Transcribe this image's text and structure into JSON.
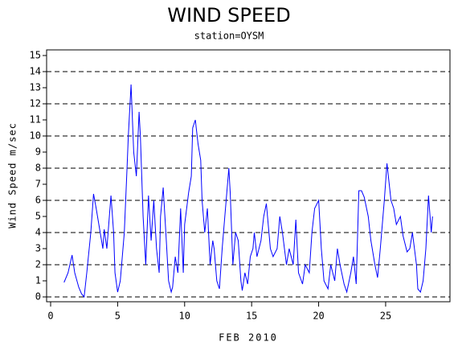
{
  "chart_data": {
    "type": "line",
    "title": "WIND SPEED",
    "subtitle": "station=OYSM",
    "xlabel": "FEB 2010",
    "ylabel": "Wind Speed m/sec",
    "xlim": [
      -0.3,
      29.8
    ],
    "ylim": [
      -0.3,
      15.35
    ],
    "xticks": [
      0,
      5,
      10,
      15,
      20,
      25
    ],
    "yticks": [
      0,
      1,
      2,
      3,
      4,
      5,
      6,
      7,
      8,
      9,
      10,
      11,
      12,
      13,
      14,
      15
    ],
    "ygrid": [
      0,
      2,
      4,
      6,
      8,
      10,
      12,
      14
    ],
    "series": [
      {
        "name": "Wind Speed",
        "color": "#0000ff",
        "x": [
          1.0,
          1.3,
          1.6,
          1.8,
          2.1,
          2.3,
          2.5,
          2.7,
          3.0,
          3.2,
          3.4,
          3.7,
          3.9,
          4.0,
          4.2,
          4.5,
          4.7,
          4.8,
          5.0,
          5.2,
          5.5,
          5.7,
          5.8,
          6.0,
          6.2,
          6.4,
          6.6,
          6.7,
          6.9,
          7.1,
          7.3,
          7.5,
          7.7,
          7.9,
          8.1,
          8.2,
          8.4,
          8.6,
          8.8,
          9.0,
          9.1,
          9.3,
          9.5,
          9.7,
          9.9,
          10.0,
          10.3,
          10.5,
          10.6,
          10.8,
          11.0,
          11.2,
          11.3,
          11.5,
          11.7,
          11.9,
          12.1,
          12.2,
          12.4,
          12.6,
          12.8,
          13.0,
          13.3,
          13.4,
          13.6,
          13.8,
          14.0,
          14.2,
          14.3,
          14.5,
          14.7,
          14.9,
          15.1,
          15.2,
          15.4,
          15.7,
          15.9,
          16.1,
          16.4,
          16.6,
          16.9,
          17.1,
          17.3,
          17.6,
          17.8,
          18.1,
          18.3,
          18.5,
          18.8,
          19.0,
          19.3,
          19.5,
          19.7,
          20.0,
          20.2,
          20.4,
          20.7,
          20.9,
          21.2,
          21.4,
          21.6,
          21.9,
          22.1,
          22.4,
          22.6,
          22.8,
          23.0,
          23.2,
          23.4,
          23.7,
          23.9,
          24.2,
          24.4,
          24.6,
          24.9,
          25.1,
          25.4,
          25.6,
          25.8,
          26.1,
          26.3,
          26.6,
          26.8,
          27.0,
          27.3,
          27.4,
          27.6,
          27.8,
          28.0,
          28.2,
          28.4,
          28.5
        ],
        "values": [
          0.9,
          1.5,
          2.6,
          1.5,
          0.6,
          0.2,
          0.0,
          1.5,
          4.0,
          6.4,
          5.5,
          4.0,
          3.0,
          4.2,
          3.0,
          6.3,
          4.0,
          1.5,
          0.3,
          1.0,
          4.0,
          8.0,
          10.0,
          13.2,
          9.0,
          7.5,
          11.5,
          10.0,
          5.0,
          2.0,
          6.3,
          3.5,
          6.0,
          3.0,
          1.5,
          5.0,
          6.8,
          4.0,
          1.0,
          0.3,
          0.6,
          2.5,
          1.5,
          5.5,
          1.5,
          4.5,
          6.5,
          7.5,
          10.5,
          11.0,
          9.5,
          8.5,
          6.0,
          4.0,
          5.5,
          2.0,
          3.5,
          3.0,
          1.0,
          0.5,
          3.0,
          5.0,
          8.0,
          6.5,
          2.0,
          4.0,
          3.5,
          1.0,
          0.4,
          1.5,
          0.8,
          2.5,
          3.0,
          4.0,
          2.5,
          3.5,
          5.0,
          5.8,
          3.0,
          2.5,
          3.0,
          5.0,
          4.0,
          2.0,
          3.0,
          2.0,
          4.8,
          1.5,
          0.8,
          2.0,
          1.5,
          4.0,
          5.5,
          6.0,
          3.0,
          1.0,
          0.5,
          2.0,
          1.0,
          3.0,
          2.0,
          0.8,
          0.3,
          1.5,
          2.5,
          0.8,
          6.6,
          6.6,
          6.2,
          5.0,
          3.5,
          2.0,
          1.2,
          3.0,
          6.0,
          8.3,
          6.0,
          5.5,
          4.5,
          5.0,
          3.8,
          2.8,
          3.0,
          4.0,
          2.0,
          0.5,
          0.3,
          1.0,
          3.0,
          6.3,
          4.0,
          5.0
        ]
      }
    ]
  }
}
